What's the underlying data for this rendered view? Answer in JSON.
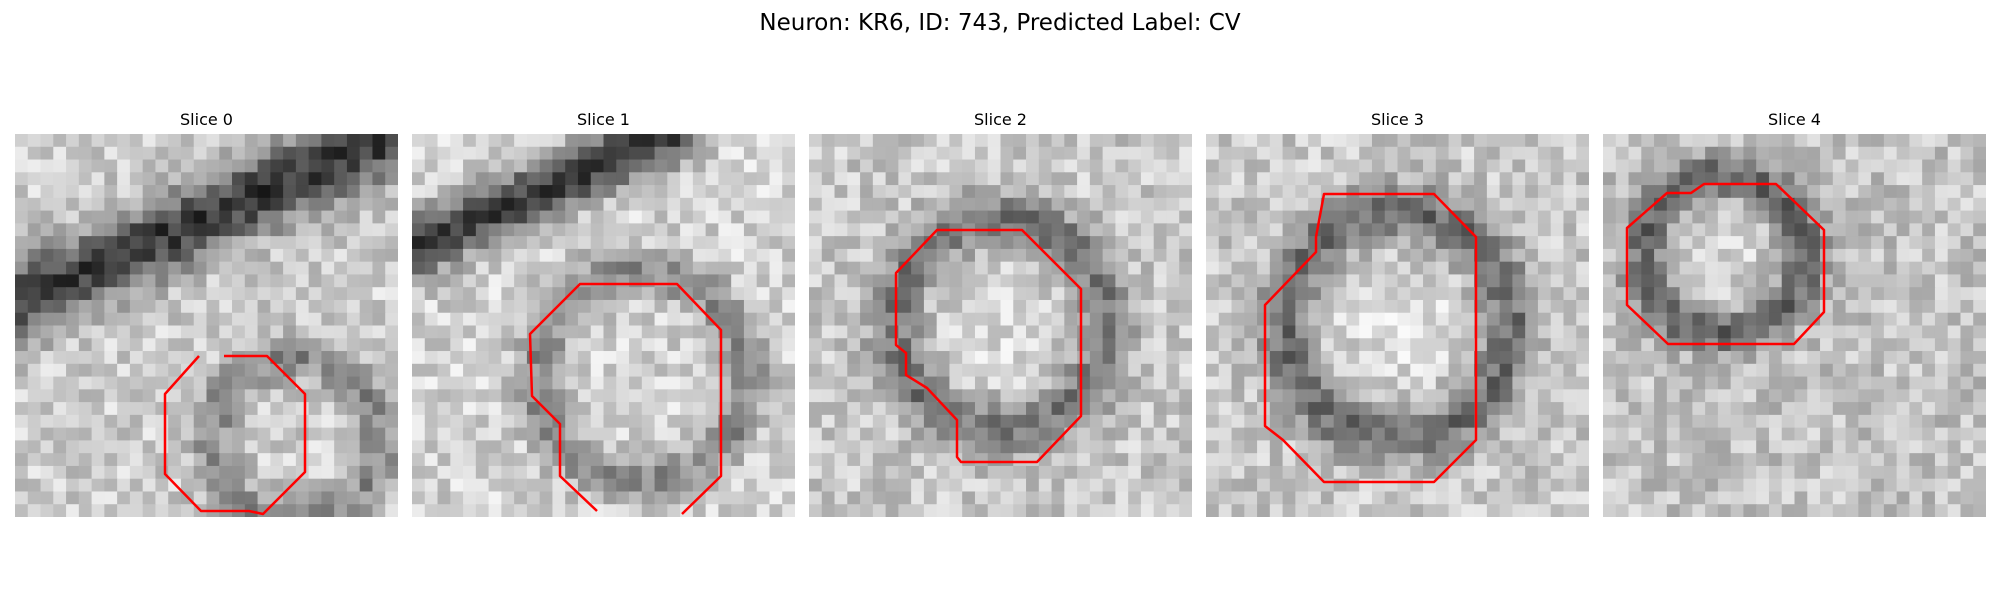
{
  "figure": {
    "title": "Neuron: KR6, ID: 743, Predicted Label: CV"
  },
  "panels": [
    {
      "title": "Slice 0"
    },
    {
      "title": "Slice 1"
    },
    {
      "title": "Slice 2"
    },
    {
      "title": "Slice 3"
    },
    {
      "title": "Slice 4"
    }
  ],
  "colors": {
    "contour": "#ff0000",
    "background": "#ffffff"
  }
}
